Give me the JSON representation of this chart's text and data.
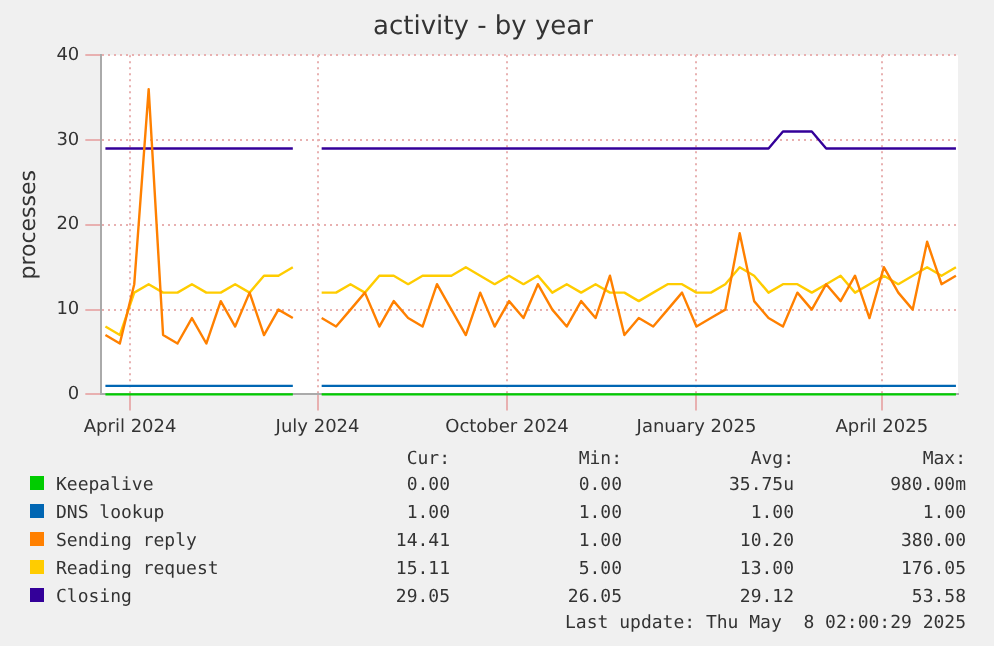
{
  "chart_data": {
    "type": "line",
    "title": "activity - by year",
    "ylabel": "processes",
    "x": [
      "2024-03-20",
      "2024-03-27",
      "2024-04-03",
      "2024-04-10",
      "2024-04-17",
      "2024-04-24",
      "2024-05-01",
      "2024-05-08",
      "2024-05-15",
      "2024-05-22",
      "2024-05-29",
      "2024-06-05",
      "2024-06-12",
      "2024-06-19",
      "2024-06-26",
      "2024-07-03",
      "2024-07-10",
      "2024-07-17",
      "2024-07-24",
      "2024-07-31",
      "2024-08-07",
      "2024-08-14",
      "2024-08-21",
      "2024-08-28",
      "2024-09-04",
      "2024-09-11",
      "2024-09-18",
      "2024-09-25",
      "2024-10-02",
      "2024-10-09",
      "2024-10-16",
      "2024-10-23",
      "2024-10-30",
      "2024-11-06",
      "2024-11-13",
      "2024-11-20",
      "2024-11-27",
      "2024-12-04",
      "2024-12-11",
      "2024-12-18",
      "2024-12-25",
      "2025-01-01",
      "2025-01-08",
      "2025-01-15",
      "2025-01-22",
      "2025-01-29",
      "2025-02-05",
      "2025-02-12",
      "2025-02-19",
      "2025-02-26",
      "2025-03-05",
      "2025-03-12",
      "2025-03-19",
      "2025-03-26",
      "2025-04-02",
      "2025-04-09",
      "2025-04-16",
      "2025-04-23",
      "2025-04-30",
      "2025-05-07"
    ],
    "series": [
      {
        "name": "Keepalive",
        "color": "#00cc00",
        "values": [
          0,
          0,
          0,
          0,
          0,
          0,
          0,
          0,
          0,
          0,
          0,
          0,
          0,
          0,
          null,
          0,
          0,
          0,
          0,
          0,
          0,
          0,
          0,
          0,
          0,
          0,
          0,
          0,
          0,
          0,
          0,
          0,
          0,
          0,
          0,
          0,
          0,
          0,
          0,
          0,
          0,
          0,
          0,
          0,
          0,
          0,
          0,
          0,
          0,
          0,
          0,
          0,
          0,
          0,
          0,
          0,
          0,
          0,
          0,
          0
        ]
      },
      {
        "name": "DNS lookup",
        "color": "#0066b3",
        "values": [
          1,
          1,
          1,
          1,
          1,
          1,
          1,
          1,
          1,
          1,
          1,
          1,
          1,
          1,
          null,
          1,
          1,
          1,
          1,
          1,
          1,
          1,
          1,
          1,
          1,
          1,
          1,
          1,
          1,
          1,
          1,
          1,
          1,
          1,
          1,
          1,
          1,
          1,
          1,
          1,
          1,
          1,
          1,
          1,
          1,
          1,
          1,
          1,
          1,
          1,
          1,
          1,
          1,
          1,
          1,
          1,
          1,
          1,
          1,
          1
        ]
      },
      {
        "name": "Sending reply",
        "color": "#ff8000",
        "values": [
          7,
          6,
          13,
          36,
          7,
          6,
          9,
          6,
          11,
          8,
          12,
          7,
          10,
          9,
          null,
          9,
          8,
          10,
          12,
          8,
          11,
          9,
          8,
          13,
          10,
          7,
          12,
          8,
          11,
          9,
          13,
          10,
          8,
          11,
          9,
          14,
          7,
          9,
          8,
          10,
          12,
          8,
          9,
          10,
          19,
          11,
          9,
          8,
          12,
          10,
          13,
          11,
          14,
          9,
          15,
          12,
          10,
          18,
          13,
          14
        ]
      },
      {
        "name": "Reading request",
        "color": "#ffcc00",
        "values": [
          8,
          7,
          12,
          13,
          12,
          12,
          13,
          12,
          12,
          13,
          12,
          14,
          14,
          15,
          null,
          12,
          12,
          13,
          12,
          14,
          14,
          13,
          14,
          14,
          14,
          15,
          14,
          13,
          14,
          13,
          14,
          12,
          13,
          12,
          13,
          12,
          12,
          11,
          12,
          13,
          13,
          12,
          12,
          13,
          15,
          14,
          12,
          13,
          13,
          12,
          13,
          14,
          12,
          13,
          14,
          13,
          14,
          15,
          14,
          15
        ]
      },
      {
        "name": "Closing",
        "color": "#330099",
        "values": [
          29,
          29,
          29,
          29,
          29,
          29,
          29,
          29,
          29,
          29,
          29,
          29,
          29,
          29,
          null,
          29,
          29,
          29,
          29,
          29,
          29,
          29,
          29,
          29,
          29,
          29,
          29,
          29,
          29,
          29,
          29,
          29,
          29,
          29,
          29,
          29,
          29,
          29,
          29,
          29,
          29,
          29,
          29,
          29,
          29,
          29,
          29,
          31,
          31,
          31,
          29,
          29,
          29,
          29,
          29,
          29,
          29,
          29,
          29,
          29
        ]
      }
    ],
    "xlim": [
      "2024-03-18",
      "2025-05-08"
    ],
    "xticks": [
      {
        "value": "2024-04-01",
        "label": "April 2024"
      },
      {
        "value": "2024-07-01",
        "label": "July 2024"
      },
      {
        "value": "2024-10-01",
        "label": "October 2024"
      },
      {
        "value": "2025-01-01",
        "label": "January 2025"
      },
      {
        "value": "2025-04-01",
        "label": "April 2025"
      }
    ],
    "ylim": [
      0,
      40
    ],
    "yticks": [
      0,
      10,
      20,
      30,
      40
    ],
    "grid": true,
    "legend": "bottom",
    "marker": "none",
    "line_style": "solid",
    "annotations": [
      "Cur:",
      "Min:",
      "Avg:",
      "Max:",
      "0.00",
      "0.00",
      "35.75u",
      "980.00m",
      "1.00",
      "1.00",
      "1.00",
      "1.00",
      "14.41",
      "1.00",
      "10.20",
      "380.00",
      "15.11",
      "5.00",
      "13.00",
      "176.05",
      "29.05",
      "26.05",
      "29.12",
      "53.58",
      "Last update: Thu May  8 02:00:29 2025"
    ]
  }
}
